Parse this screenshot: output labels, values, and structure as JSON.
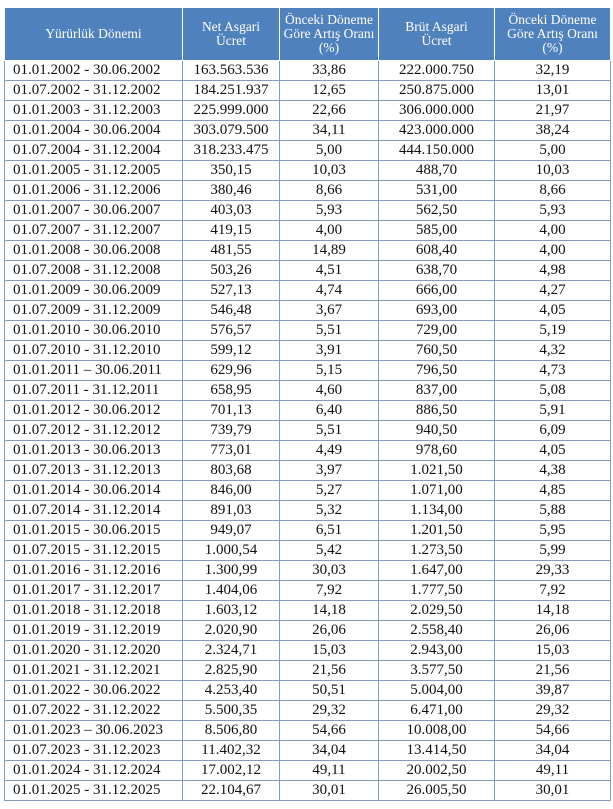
{
  "headers": [
    [
      "Yürürlük Dönemi"
    ],
    [
      "Net Asgari",
      "Ücret"
    ],
    [
      "Önceki Döneme",
      "Göre Artış Oranı",
      "(%)"
    ],
    [
      "Brüt Asgari",
      "Ücret"
    ],
    [
      "Önceki Döneme",
      "Göre Artış Oranı",
      "(%)"
    ]
  ],
  "header_color": "#4f81bd",
  "rows": [
    [
      "01.01.2002 - 30.06.2002",
      "163.563.536",
      "33,86",
      "222.000.750",
      "32,19"
    ],
    [
      "01.07.2002 - 31.12.2002",
      "184.251.937",
      "12,65",
      "250.875.000",
      "13,01"
    ],
    [
      "01.01.2003 - 31.12.2003",
      "225.999.000",
      "22,66",
      "306.000.000",
      "21,97"
    ],
    [
      "01.01.2004 - 30.06.2004",
      "303.079.500",
      "34,11",
      "423.000.000",
      "38,24"
    ],
    [
      "01.07.2004 - 31.12.2004",
      "318.233.475",
      "5,00",
      "444.150.000",
      "5,00"
    ],
    [
      "01.01.2005 - 31.12.2005",
      "350,15",
      "10,03",
      "488,70",
      "10,03"
    ],
    [
      "01.01.2006 - 31.12.2006",
      "380,46",
      "8,66",
      "531,00",
      "8,66"
    ],
    [
      "01.01.2007 - 30.06.2007",
      "403,03",
      "5,93",
      "562,50",
      "5,93"
    ],
    [
      "01.07.2007 - 31.12.2007",
      "419,15",
      "4,00",
      "585,00",
      "4,00"
    ],
    [
      "01.01.2008 - 30.06.2008",
      "481,55",
      "14,89",
      "608,40",
      "4,00"
    ],
    [
      "01.07.2008 - 31.12.2008",
      "503,26",
      "4,51",
      "638,70",
      "4,98"
    ],
    [
      "01.01.2009 - 30.06.2009",
      "527,13",
      "4,74",
      "666,00",
      "4,27"
    ],
    [
      "01.07.2009 - 31.12.2009",
      "546,48",
      "3,67",
      "693,00",
      "4,05"
    ],
    [
      "01.01.2010 - 30.06.2010",
      "576,57",
      "5,51",
      "729,00",
      "5,19"
    ],
    [
      "01.07.2010 - 31.12.2010",
      "599,12",
      "3,91",
      "760,50",
      "4,32"
    ],
    [
      "01.01.2011 – 30.06.2011",
      "629,96",
      "5,15",
      "796,50",
      "4,73"
    ],
    [
      "01.07.2011 - 31.12.2011",
      "658,95",
      "4,60",
      "837,00",
      "5,08"
    ],
    [
      "01.01.2012 - 30.06.2012",
      "701,13",
      "6,40",
      "886,50",
      "5,91"
    ],
    [
      "01.07.2012 - 31.12.2012",
      "739,79",
      "5,51",
      "940,50",
      "6,09"
    ],
    [
      "01.01.2013 - 30.06.2013",
      "773,01",
      "4,49",
      "978,60",
      "4,05"
    ],
    [
      "01.07.2013 - 31.12.2013",
      "803,68",
      "3,97",
      "1.021,50",
      "4,38"
    ],
    [
      "01.01.2014 - 30.06.2014",
      "846,00",
      "5,27",
      "1.071,00",
      "4,85"
    ],
    [
      "01.07.2014 - 31.12.2014",
      "891,03",
      "5,32",
      "1.134,00",
      "5,88"
    ],
    [
      "01.01.2015 - 30.06.2015",
      "949,07",
      "6,51",
      "1.201,50",
      "5,95"
    ],
    [
      "01.07.2015 - 31.12.2015",
      "1.000,54",
      "5,42",
      "1.273,50",
      "5,99"
    ],
    [
      "01.01.2016 - 31.12.2016",
      "1.300,99",
      "30,03",
      "1.647,00",
      "29,33"
    ],
    [
      "01.01.2017 - 31.12.2017",
      "1.404,06",
      "7,92",
      "1.777,50",
      "7,92"
    ],
    [
      "01.01.2018 - 31.12.2018",
      "1.603,12",
      "14,18",
      "2.029,50",
      "14,18"
    ],
    [
      "01.01.2019 - 31.12.2019",
      "2.020,90",
      "26,06",
      "2.558,40",
      "26,06"
    ],
    [
      "01.01.2020 - 31.12.2020",
      "2.324,71",
      "15,03",
      "2.943,00",
      "15,03"
    ],
    [
      "01.01.2021 - 31.12.2021",
      "2.825,90",
      "21,56",
      "3.577,50",
      "21,56"
    ],
    [
      "01.01.2022 - 30.06.2022",
      "4.253,40",
      "50,51",
      "5.004,00",
      "39,87"
    ],
    [
      "01.07.2022 - 31.12.2022",
      "5.500,35",
      "29,32",
      "6.471,00",
      "29,32"
    ],
    [
      "01.01.2023 – 30.06.2023",
      "8.506,80",
      "54,66",
      "10.008,00",
      "54,66"
    ],
    [
      "01.07.2023 - 31.12.2023",
      "11.402,32",
      "34,04",
      "13.414,50",
      "34,04"
    ],
    [
      "01.01.2024 - 31.12.2024",
      "17.002,12",
      "49,11",
      "20.002,50",
      "49,11"
    ],
    [
      "01.01.2025 - 31.12.2025",
      "22.104,67",
      "30,01",
      "26.005,50",
      "30,01"
    ]
  ]
}
